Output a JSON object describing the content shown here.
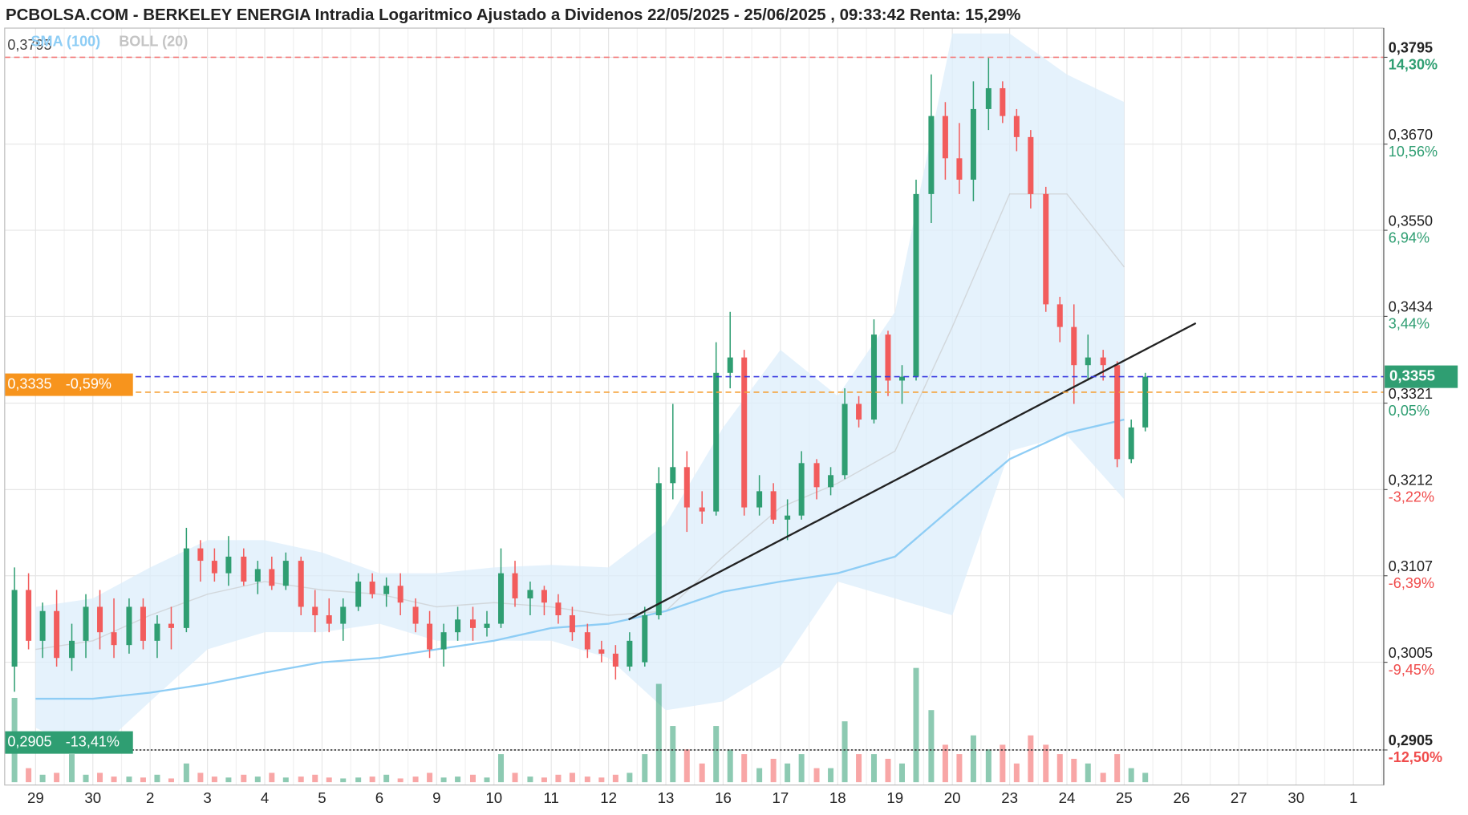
{
  "chart_data": {
    "type": "candlestick",
    "title": "PCBOLSA.COM - BERKELEY ENERGIA Intradia Logaritmico Ajustado a Dividenos 22/05/2025 - 25/06/2025 , 09:33:42 Renta: 15,29%",
    "legend": [
      {
        "name": "SMA (100)",
        "color": "#8ecdf5"
      },
      {
        "name": "BOLL (20)",
        "color": "#c4c4c4"
      }
    ],
    "log": true,
    "grid": true,
    "up_color": "#2f9e72",
    "down_color": "#f25c5c",
    "categories": [
      "29",
      "30",
      "2",
      "3",
      "4",
      "5",
      "6",
      "9",
      "10",
      "11",
      "12",
      "13",
      "16",
      "17",
      "18",
      "19",
      "20",
      "23",
      "24",
      "25",
      "26",
      "27",
      "30",
      "1"
    ],
    "candles": [
      [
        [
          0.3,
          0.3117,
          0.2971,
          0.309
        ],
        [
          0.309,
          0.311,
          0.302,
          0.303
        ],
        [
          0.303,
          0.3075,
          0.301,
          0.3065
        ],
        [
          0.3065,
          0.309,
          0.3,
          0.301
        ]
      ],
      [
        [
          0.301,
          0.305,
          0.2995,
          0.303
        ],
        [
          0.303,
          0.3085,
          0.301,
          0.307
        ],
        [
          0.307,
          0.309,
          0.302,
          0.304
        ],
        [
          0.304,
          0.308,
          0.301,
          0.3025
        ]
      ],
      [
        [
          0.3025,
          0.308,
          0.3015,
          0.307
        ],
        [
          0.307,
          0.308,
          0.302,
          0.303
        ],
        [
          0.303,
          0.306,
          0.301,
          0.305
        ],
        [
          0.305,
          0.307,
          0.302,
          0.3045
        ]
      ],
      [
        [
          0.3045,
          0.3165,
          0.304,
          0.314
        ],
        [
          0.314,
          0.315,
          0.31,
          0.3125
        ],
        [
          0.3125,
          0.314,
          0.31,
          0.311
        ],
        [
          0.311,
          0.3155,
          0.3095,
          0.313
        ]
      ],
      [
        [
          0.313,
          0.314,
          0.3095,
          0.31
        ],
        [
          0.31,
          0.3125,
          0.3085,
          0.3115
        ],
        [
          0.3115,
          0.313,
          0.309,
          0.3095
        ],
        [
          0.3095,
          0.3135,
          0.309,
          0.3125
        ]
      ],
      [
        [
          0.3125,
          0.313,
          0.306,
          0.307
        ],
        [
          0.307,
          0.309,
          0.304,
          0.306
        ],
        [
          0.306,
          0.308,
          0.304,
          0.305
        ],
        [
          0.305,
          0.308,
          0.303,
          0.307
        ]
      ],
      [
        [
          0.307,
          0.311,
          0.3065,
          0.31
        ],
        [
          0.31,
          0.311,
          0.308,
          0.3085
        ],
        [
          0.3085,
          0.3105,
          0.307,
          0.3095
        ],
        [
          0.3095,
          0.311,
          0.306,
          0.3075
        ]
      ],
      [
        [
          0.307,
          0.308,
          0.304,
          0.305
        ],
        [
          0.305,
          0.3065,
          0.301,
          0.302
        ],
        [
          0.302,
          0.305,
          0.3,
          0.304
        ],
        [
          0.304,
          0.307,
          0.303,
          0.3055
        ]
      ],
      [
        [
          0.3055,
          0.307,
          0.303,
          0.3045
        ],
        [
          0.3045,
          0.3065,
          0.3035,
          0.305
        ],
        [
          0.305,
          0.314,
          0.3045,
          0.311
        ],
        [
          0.311,
          0.3125,
          0.307,
          0.308
        ]
      ],
      [
        [
          0.308,
          0.31,
          0.306,
          0.309
        ],
        [
          0.309,
          0.3095,
          0.306,
          0.3075
        ],
        [
          0.3075,
          0.3085,
          0.305,
          0.306
        ],
        [
          0.306,
          0.307,
          0.303,
          0.304
        ]
      ],
      [
        [
          0.304,
          0.305,
          0.301,
          0.302
        ],
        [
          0.302,
          0.303,
          0.3005,
          0.3015
        ],
        [
          0.3015,
          0.3025,
          0.2985,
          0.3
        ],
        [
          0.3,
          0.304,
          0.2995,
          0.303
        ]
      ],
      [
        [
          0.3005,
          0.307,
          0.3,
          0.306
        ],
        [
          0.306,
          0.324,
          0.3055,
          0.322
        ],
        [
          0.322,
          0.332,
          0.32,
          0.324
        ],
        [
          0.324,
          0.326,
          0.316,
          0.319
        ]
      ],
      [
        [
          0.319,
          0.321,
          0.317,
          0.3185
        ],
        [
          0.3185,
          0.34,
          0.318,
          0.336
        ],
        [
          0.336,
          0.344,
          0.334,
          0.338
        ],
        [
          0.338,
          0.339,
          0.318,
          0.319
        ]
      ],
      [
        [
          0.319,
          0.323,
          0.318,
          0.321
        ],
        [
          0.321,
          0.322,
          0.317,
          0.3175
        ],
        [
          0.3175,
          0.32,
          0.315,
          0.318
        ],
        [
          0.318,
          0.326,
          0.3175,
          0.3245
        ]
      ],
      [
        [
          0.3245,
          0.325,
          0.32,
          0.3215
        ],
        [
          0.3215,
          0.324,
          0.3205,
          0.323
        ],
        [
          0.323,
          0.334,
          0.3225,
          0.332
        ],
        [
          0.332,
          0.333,
          0.329,
          0.33
        ]
      ],
      [
        [
          0.33,
          0.343,
          0.3295,
          0.341
        ],
        [
          0.341,
          0.3415,
          0.333,
          0.335
        ],
        [
          0.335,
          0.337,
          0.332,
          0.3355
        ],
        [
          0.3355,
          0.362,
          0.335,
          0.36
        ]
      ],
      [
        [
          0.36,
          0.377,
          0.356,
          0.371
        ],
        [
          0.371,
          0.373,
          0.362,
          0.365
        ],
        [
          0.365,
          0.37,
          0.36,
          0.362
        ],
        [
          0.362,
          0.376,
          0.359,
          0.372
        ]
      ],
      [
        [
          0.372,
          0.3795,
          0.369,
          0.375
        ],
        [
          0.375,
          0.376,
          0.37,
          0.371
        ],
        [
          0.371,
          0.372,
          0.366,
          0.368
        ],
        [
          0.368,
          0.369,
          0.358,
          0.36
        ]
      ],
      [
        [
          0.36,
          0.361,
          0.344,
          0.345
        ],
        [
          0.345,
          0.346,
          0.34,
          0.342
        ],
        [
          0.342,
          0.345,
          0.332,
          0.337
        ],
        [
          0.337,
          0.341,
          0.335,
          0.338
        ]
      ],
      [
        [
          0.338,
          0.339,
          0.335,
          0.337
        ],
        [
          0.337,
          0.3375,
          0.324,
          0.325
        ],
        [
          0.325,
          0.33,
          0.3245,
          0.329
        ],
        [
          0.329,
          0.336,
          0.3285,
          0.3355
        ]
      ],
      [],
      [],
      [],
      []
    ],
    "volumes": [
      [
        90,
        15,
        8,
        10
      ],
      [
        30,
        8,
        10,
        6
      ],
      [
        6,
        5,
        8,
        4
      ],
      [
        20,
        10,
        6,
        5
      ],
      [
        8,
        6,
        10,
        5
      ],
      [
        6,
        8,
        5,
        4
      ],
      [
        5,
        6,
        8,
        4
      ],
      [
        6,
        10,
        5,
        6
      ],
      [
        8,
        5,
        30,
        10
      ],
      [
        6,
        5,
        8,
        10
      ],
      [
        6,
        5,
        8,
        10
      ],
      [
        30,
        105,
        60,
        35
      ],
      [
        20,
        60,
        35,
        30
      ],
      [
        15,
        25,
        20,
        30
      ],
      [
        15,
        15,
        65,
        30
      ],
      [
        30,
        25,
        20,
        122
      ],
      [
        77,
        40,
        30,
        50
      ],
      [
        35,
        40,
        20,
        50
      ],
      [
        40,
        30,
        25,
        20
      ],
      [
        10,
        30,
        15,
        10
      ],
      [],
      [],
      [],
      []
    ],
    "sma": [
      0.2963,
      0.2963,
      0.297,
      0.298,
      0.2993,
      0.3005,
      0.301,
      0.302,
      0.303,
      0.3045,
      0.305,
      0.3065,
      0.3088,
      0.31,
      0.311,
      0.313,
      0.319,
      0.325,
      0.3283,
      0.33,
      null,
      null,
      null,
      null
    ],
    "boll": {
      "upper": [
        0.307,
        0.308,
        0.3117,
        0.315,
        0.315,
        0.3135,
        0.311,
        0.311,
        0.3117,
        0.312,
        0.3117,
        0.317,
        0.329,
        0.339,
        0.333,
        0.344,
        0.383,
        0.383,
        0.377,
        0.373,
        null,
        null,
        null,
        null
      ],
      "middle": [
        0.302,
        0.303,
        0.306,
        0.3085,
        0.31,
        0.309,
        0.3085,
        0.307,
        0.3075,
        0.307,
        0.306,
        0.3065,
        0.313,
        0.319,
        0.322,
        0.326,
        0.342,
        0.36,
        0.36,
        0.35,
        null,
        null,
        null,
        null
      ],
      "lower": [
        0.293,
        0.29,
        0.296,
        0.302,
        0.304,
        0.304,
        0.305,
        0.303,
        0.303,
        0.303,
        0.301,
        0.295,
        0.296,
        0.3,
        0.31,
        0.308,
        0.306,
        0.326,
        0.328,
        0.32,
        null,
        null,
        null,
        null
      ]
    },
    "trendline": {
      "x": [
        10.35,
        20.25
      ],
      "y": [
        0.3055,
        0.3425
      ]
    },
    "ylim": [
      0.2866,
      0.3838
    ],
    "yticks": [
      {
        "value": 0.3795,
        "label": "0,3795"
      },
      {
        "value": 0.367,
        "label": "0,3670"
      },
      {
        "value": 0.355,
        "label": "0,3550"
      },
      {
        "value": 0.3434,
        "label": "0,3434"
      },
      {
        "value": 0.3321,
        "label": "0,3321"
      },
      {
        "value": 0.3212,
        "label": "0,3212"
      },
      {
        "value": 0.3107,
        "label": "0,3107"
      },
      {
        "value": 0.3005,
        "label": "0,3005"
      },
      {
        "value": 0.2905,
        "label": "0,2905"
      }
    ],
    "ytick_changes": [
      "14,30%",
      "10,56%",
      "6,94%",
      "3,44%",
      "0,05%",
      "-3,22%",
      "-6,39%",
      "-9,45%",
      "-12,50%"
    ],
    "price_lines": [
      {
        "value": 0.3795,
        "label": "0,3795",
        "color": "#f47c7c",
        "style": "dashed",
        "side": "top-left"
      },
      {
        "value": 0.3355,
        "label": "0,3355",
        "color": "#3a3ae0",
        "style": "dashed",
        "side": "right",
        "box_color": "#2f9e72"
      },
      {
        "value": 0.3335,
        "label": "0,3335",
        "change": "-0,59%",
        "color": "#f5a23a",
        "style": "dashed",
        "side": "left",
        "box_color": "#f7941d"
      },
      {
        "value": 0.2905,
        "label": "0,2905",
        "change": "-13,41%",
        "color": "#333333",
        "style": "dotted",
        "side": "left",
        "box_color": "#2f9e72"
      }
    ]
  }
}
